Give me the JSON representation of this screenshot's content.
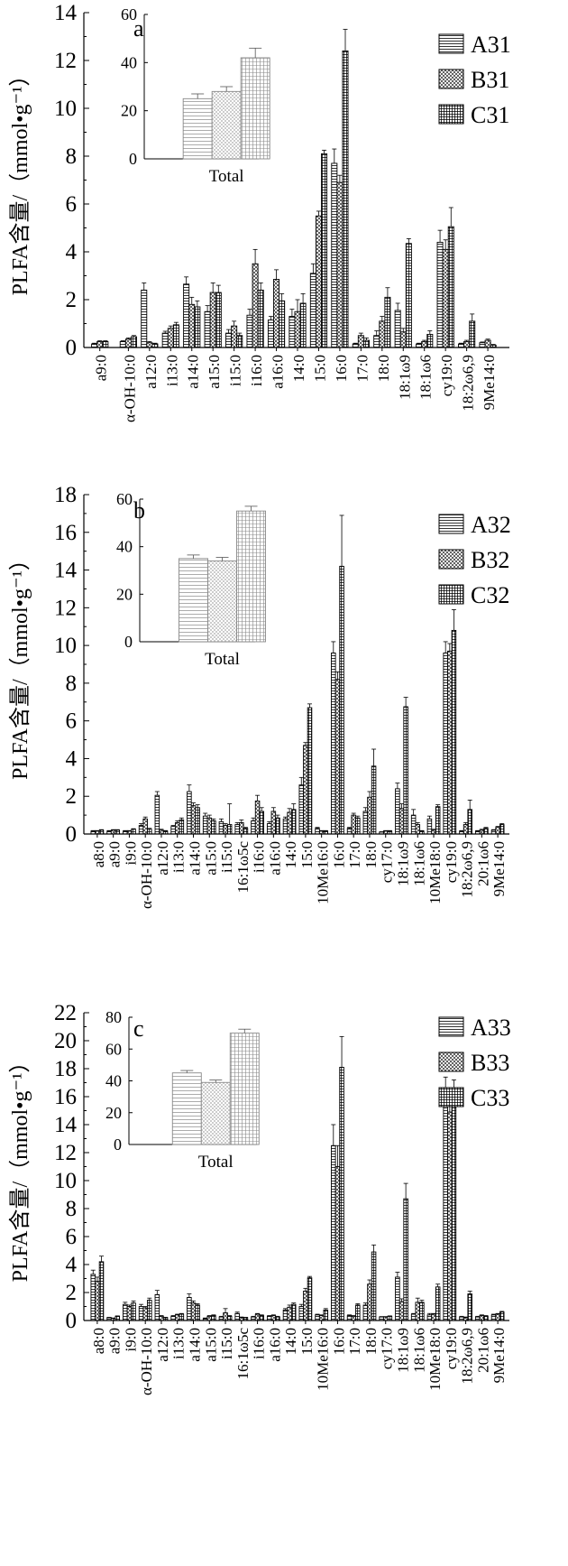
{
  "chart_data": [
    {
      "type": "bar",
      "panel_label": "a",
      "ylabel": "PLFA含量/（mmol•g⁻¹）",
      "ylim": [
        0,
        14
      ],
      "yticks": [
        0,
        2,
        4,
        6,
        8,
        10,
        12,
        14
      ],
      "gaps_after": [
        0,
        19
      ],
      "categories": [
        "a9:0",
        "α-OH-10:0",
        "a12:0",
        "i13:0",
        "a14:0",
        "a15:0",
        "i15:0",
        "i16:0",
        "a16:0",
        "14:0",
        "15:0",
        "16:0",
        "17:0",
        "18:0",
        "18:1ω9",
        "18:1ω6",
        "cy19:0",
        "18:2ω6,9",
        "9Me14:0"
      ],
      "series": [
        {
          "name": "A31",
          "values": [
            0.15,
            0.25,
            2.4,
            0.6,
            2.65,
            1.5,
            0.6,
            1.35,
            1.15,
            1.3,
            3.1,
            7.7,
            0.15,
            0.5,
            1.55,
            0.15,
            4.4,
            0.15,
            0.2
          ],
          "errors": [
            0.03,
            0.03,
            0.3,
            0.08,
            0.3,
            0.25,
            0.15,
            0.25,
            0.15,
            0.3,
            0.4,
            0.6,
            0.03,
            0.2,
            0.3,
            0.03,
            0.5,
            0.03,
            0.03
          ]
        },
        {
          "name": "B31",
          "values": [
            0.25,
            0.35,
            0.2,
            0.8,
            1.8,
            2.3,
            0.9,
            3.5,
            2.85,
            1.5,
            5.5,
            6.9,
            0.5,
            1.1,
            0.65,
            0.25,
            4.1,
            0.25,
            0.3
          ],
          "errors": [
            0.03,
            0.05,
            0.05,
            0.1,
            0.3,
            0.4,
            0.2,
            0.6,
            0.4,
            0.5,
            0.2,
            0.3,
            0.1,
            0.2,
            0.15,
            0.05,
            0.4,
            0.05,
            0.05
          ]
        },
        {
          "name": "C31",
          "values": [
            0.25,
            0.45,
            0.15,
            0.95,
            1.7,
            2.3,
            0.5,
            2.4,
            1.95,
            1.85,
            8.1,
            12.4,
            0.3,
            2.1,
            4.35,
            0.55,
            5.05,
            1.1,
            0.1
          ],
          "errors": [
            0.03,
            0.05,
            0.03,
            0.1,
            0.25,
            0.3,
            0.1,
            0.3,
            0.3,
            0.4,
            0.15,
            0.9,
            0.1,
            0.4,
            0.2,
            0.15,
            0.8,
            0.3,
            0.03
          ]
        }
      ],
      "inset": {
        "xlabel": "Total",
        "ylim": [
          0,
          60
        ],
        "yticks": [
          0,
          20,
          40,
          60
        ],
        "values": [
          25,
          28,
          42
        ],
        "errors": [
          2,
          2,
          4
        ]
      }
    },
    {
      "type": "bar",
      "panel_label": "b",
      "ylabel": "PLFA含量/（mmol•g⁻¹）",
      "ylim": [
        0,
        18
      ],
      "yticks": [
        0,
        2,
        4,
        6,
        8,
        10,
        12,
        14,
        16,
        18
      ],
      "gaps_after": [],
      "categories": [
        "a8:0",
        "a9:0",
        "i9:0",
        "α-OH-10:0",
        "a12:0",
        "i13:0",
        "a14:0",
        "a15:0",
        "i15:0",
        "16:1ω5c",
        "i16:0",
        "a16:0",
        "14:0",
        "15:0",
        "10Me16:0",
        "16:0",
        "17:0",
        "18:0",
        "cy17:0",
        "18:1ω9",
        "18:1ω6",
        "10Me18:0",
        "cy19:0",
        "18:2ω6,9",
        "20:1ω6",
        "9Me14:0"
      ],
      "series": [
        {
          "name": "A32",
          "values": [
            0.15,
            0.15,
            0.15,
            0.45,
            2.05,
            0.4,
            2.25,
            0.95,
            0.65,
            0.5,
            0.7,
            0.55,
            0.8,
            2.6,
            0.3,
            9.6,
            0.3,
            1.2,
            0.1,
            2.4,
            1.0,
            0.8,
            9.6,
            0.15,
            0.15,
            0.2
          ],
          "errors": [
            0.03,
            0.03,
            0.03,
            0.1,
            0.2,
            0.05,
            0.35,
            0.15,
            0.15,
            0.1,
            0.15,
            0.1,
            0.1,
            0.4,
            0.05,
            0.6,
            0.05,
            0.2,
            0.02,
            0.3,
            0.3,
            0.15,
            0.6,
            0.03,
            0.03,
            0.03
          ]
        },
        {
          "name": "B32",
          "values": [
            0.15,
            0.2,
            0.15,
            0.8,
            0.2,
            0.6,
            1.5,
            0.85,
            0.45,
            0.6,
            1.75,
            1.2,
            1.15,
            4.7,
            0.15,
            8.2,
            1.0,
            1.95,
            0.15,
            1.35,
            0.5,
            0.2,
            9.7,
            0.5,
            0.2,
            0.35
          ],
          "errors": [
            0.03,
            0.03,
            0.03,
            0.1,
            0.05,
            0.1,
            0.15,
            0.15,
            0.1,
            0.15,
            0.3,
            0.2,
            0.2,
            0.15,
            0.03,
            0.4,
            0.1,
            0.3,
            0.03,
            0.25,
            0.1,
            0.05,
            0.4,
            0.1,
            0.05,
            0.05
          ]
        },
        {
          "name": "C32",
          "values": [
            0.2,
            0.2,
            0.25,
            0.25,
            0.15,
            0.75,
            1.4,
            0.7,
            0.5,
            0.3,
            1.2,
            0.85,
            1.3,
            6.7,
            0.15,
            14.2,
            0.85,
            3.6,
            0.15,
            6.75,
            0.15,
            1.45,
            10.8,
            1.3,
            0.3,
            0.5
          ],
          "errors": [
            0.03,
            0.03,
            0.03,
            0.05,
            0.03,
            0.1,
            0.15,
            0.1,
            1.1,
            0.05,
            0.2,
            0.15,
            0.3,
            0.2,
            0.03,
            2.7,
            0.1,
            0.9,
            0.03,
            0.5,
            0.03,
            0.1,
            1.1,
            0.5,
            0.05,
            0.05
          ]
        }
      ],
      "inset": {
        "xlabel": "Total",
        "ylim": [
          0,
          60
        ],
        "yticks": [
          0,
          20,
          40,
          60
        ],
        "values": [
          35,
          34,
          55
        ],
        "errors": [
          1.5,
          1.5,
          2
        ]
      }
    },
    {
      "type": "bar",
      "panel_label": "c",
      "ylabel": "PLFA含量/（mmol•g⁻¹）",
      "ylim": [
        0,
        22
      ],
      "yticks": [
        0,
        2,
        4,
        6,
        8,
        10,
        12,
        14,
        16,
        18,
        20,
        22
      ],
      "gaps_after": [],
      "categories": [
        "a8:0",
        "a9:0",
        "i9:0",
        "α-OH-10:0",
        "a12:0",
        "i13:0",
        "a14:0",
        "a15:0",
        "i15:0",
        "16:1ω5c",
        "i16:0",
        "a16:0",
        "14:0",
        "15:0",
        "10Me16:0",
        "16:0",
        "17:0",
        "18:0",
        "cy17:0",
        "18:1ω9",
        "18:1ω6",
        "10Me18:0",
        "cy19:0",
        "18:2ω6,9",
        "20:1ω6",
        "9Me14:0"
      ],
      "series": [
        {
          "name": "A33",
          "values": [
            3.3,
            0.2,
            1.15,
            1.0,
            1.85,
            0.3,
            1.65,
            0.15,
            0.25,
            0.5,
            0.25,
            0.3,
            0.75,
            1.0,
            0.4,
            12.5,
            0.35,
            1.1,
            0.25,
            3.1,
            0.45,
            0.4,
            15.6,
            0.25,
            0.25,
            0.4
          ],
          "errors": [
            0.3,
            0.03,
            0.15,
            0.15,
            0.3,
            0.05,
            0.25,
            0.03,
            0.05,
            0.1,
            0.05,
            0.05,
            0.1,
            0.15,
            0.05,
            1.5,
            0.05,
            0.15,
            0.03,
            0.35,
            0.05,
            0.1,
            1.8,
            0.05,
            0.05,
            0.05
          ]
        },
        {
          "name": "B33",
          "values": [
            2.8,
            0.15,
            1.0,
            0.9,
            0.3,
            0.4,
            1.25,
            0.3,
            0.55,
            0.2,
            0.45,
            0.35,
            0.95,
            2.1,
            0.35,
            11.0,
            0.3,
            2.6,
            0.25,
            1.35,
            1.3,
            0.45,
            14.9,
            0.2,
            0.35,
            0.45
          ],
          "errors": [
            0.3,
            0.03,
            0.1,
            0.1,
            0.05,
            0.05,
            0.15,
            0.05,
            0.3,
            0.05,
            0.05,
            0.05,
            0.15,
            0.2,
            0.05,
            1.5,
            0.05,
            0.3,
            0.03,
            0.2,
            0.3,
            0.05,
            1.5,
            0.05,
            0.05,
            0.05
          ]
        },
        {
          "name": "C33",
          "values": [
            4.2,
            0.3,
            1.25,
            1.45,
            0.2,
            0.45,
            1.1,
            0.35,
            0.3,
            0.2,
            0.35,
            0.25,
            1.15,
            3.05,
            0.75,
            18.1,
            1.1,
            4.9,
            0.3,
            8.7,
            1.3,
            2.4,
            15.8,
            1.9,
            0.3,
            0.6
          ],
          "errors": [
            0.4,
            0.03,
            0.15,
            0.15,
            0.03,
            0.05,
            0.1,
            0.05,
            0.05,
            0.03,
            0.05,
            0.05,
            0.1,
            0.1,
            0.1,
            2.2,
            0.1,
            0.5,
            0.03,
            1.1,
            0.15,
            0.2,
            1.4,
            0.2,
            0.05,
            0.05
          ]
        }
      ],
      "inset": {
        "xlabel": "Total",
        "ylim": [
          0,
          80
        ],
        "yticks": [
          0,
          20,
          40,
          60,
          80
        ],
        "values": [
          45,
          39,
          70
        ],
        "errors": [
          1.5,
          1.5,
          2.5
        ]
      }
    }
  ]
}
